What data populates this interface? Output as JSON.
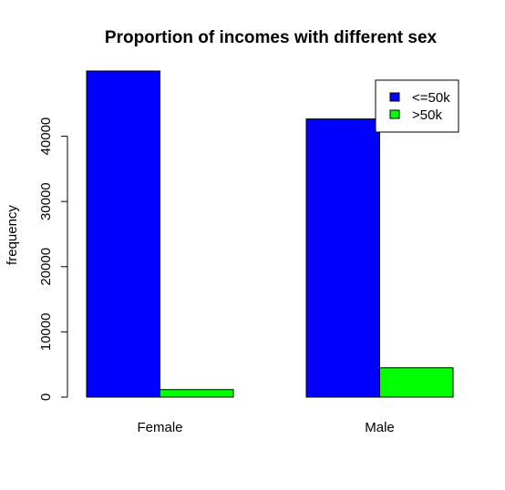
{
  "chart_data": {
    "type": "bar",
    "title": "Proportion of incomes with different sex",
    "xlabel": "",
    "ylabel": "frequency",
    "categories": [
      "Female",
      "Male"
    ],
    "series": [
      {
        "name": "<=50k",
        "color": "#0000ff",
        "values": [
          50000,
          42650
        ]
      },
      {
        "name": ">50k",
        "color": "#00ff00",
        "values": [
          1150,
          4500
        ]
      }
    ],
    "ylim": [
      0,
      50000
    ],
    "yticks": [
      "0",
      "10000",
      "20000",
      "30000",
      "40000"
    ],
    "legend": "top-right",
    "grid": false
  }
}
